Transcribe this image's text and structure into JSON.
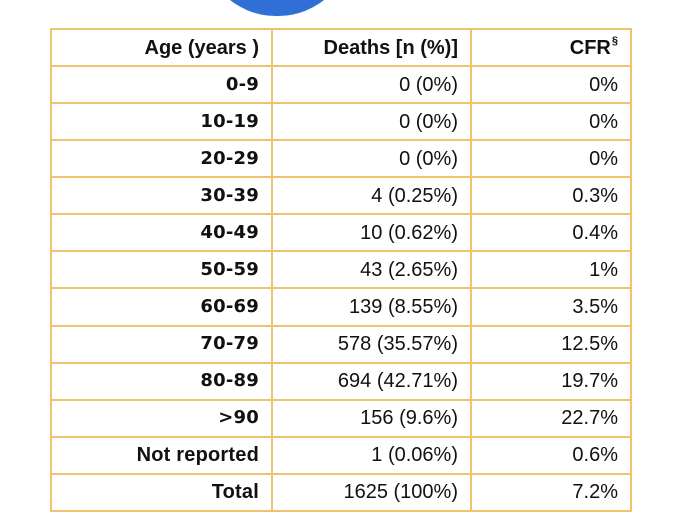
{
  "table": {
    "headers": {
      "age": "Age (years )",
      "deaths": "Deaths [n (%)]",
      "cfr": "CFR",
      "cfr_sup": "§"
    },
    "rows": [
      {
        "age": "0-9",
        "deaths": "0 (0%)",
        "cfr": "0%"
      },
      {
        "age": "10-19",
        "deaths": "0 (0%)",
        "cfr": "0%"
      },
      {
        "age": "20-29",
        "deaths": "0 (0%)",
        "cfr": "0%"
      },
      {
        "age": "30-39",
        "deaths": "4 (0.25%)",
        "cfr": "0.3%"
      },
      {
        "age": "40-49",
        "deaths": "10 (0.62%)",
        "cfr": "0.4%"
      },
      {
        "age": "50-59",
        "deaths": "43 (2.65%)",
        "cfr": "1%"
      },
      {
        "age": "60-69",
        "deaths": "139 (8.55%)",
        "cfr": "3.5%"
      },
      {
        "age": "70-79",
        "deaths": "578 (35.57%)",
        "cfr": "12.5%"
      },
      {
        "age": "80-89",
        "deaths": "694 (42.71%)",
        "cfr": "19.7%"
      },
      {
        "age": ">90",
        "deaths": "156 (9.6%)",
        "cfr": "22.7%"
      },
      {
        "age": "Not reported",
        "deaths": "1 (0.06%)",
        "cfr": "0.6%"
      },
      {
        "age": "Total",
        "deaths": "1625 (100%)",
        "cfr": "7.2%"
      }
    ]
  },
  "colors": {
    "border": "#f2c36f",
    "top_shape": "#2f6fd6"
  }
}
